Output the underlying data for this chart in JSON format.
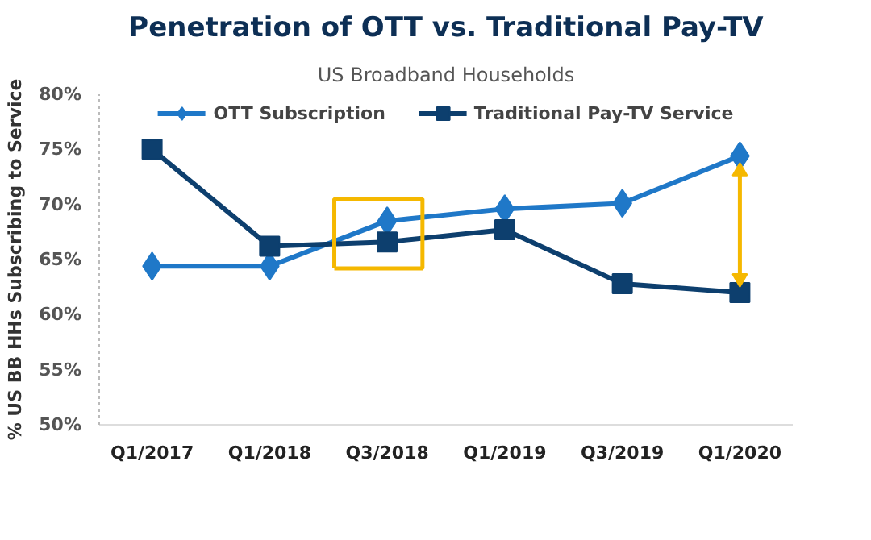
{
  "chart_data": {
    "type": "line",
    "title": "Penetration of OTT vs. Traditional Pay-TV",
    "subtitle": "US Broadband Households",
    "ylabel": "% US BB HHs Subscribing to Service",
    "categories": [
      "Q1/2017",
      "Q1/2018",
      "Q3/2018",
      "Q1/2019",
      "Q3/2019",
      "Q1/2020"
    ],
    "series": [
      {
        "name": "OTT Subscription",
        "color": "#1f78c8",
        "marker": "diamond",
        "values": [
          64.4,
          64.4,
          68.5,
          69.6,
          70.1,
          74.4
        ]
      },
      {
        "name": "Traditional Pay-TV Service",
        "color": "#0d3f6e",
        "marker": "square",
        "values": [
          75,
          66.2,
          66.6,
          67.7,
          62.8,
          62
        ]
      }
    ],
    "ylim": [
      50,
      80
    ],
    "yticks": [
      {
        "value": 50,
        "label": "50%"
      },
      {
        "value": 55,
        "label": "55%"
      },
      {
        "value": 60,
        "label": "60%"
      },
      {
        "value": 65,
        "label": "65%"
      },
      {
        "value": 70,
        "label": "70%"
      },
      {
        "value": 75,
        "label": "75%"
      },
      {
        "value": 80,
        "label": "80%"
      }
    ],
    "grid": false,
    "legend": "top",
    "line_style": "solid"
  }
}
